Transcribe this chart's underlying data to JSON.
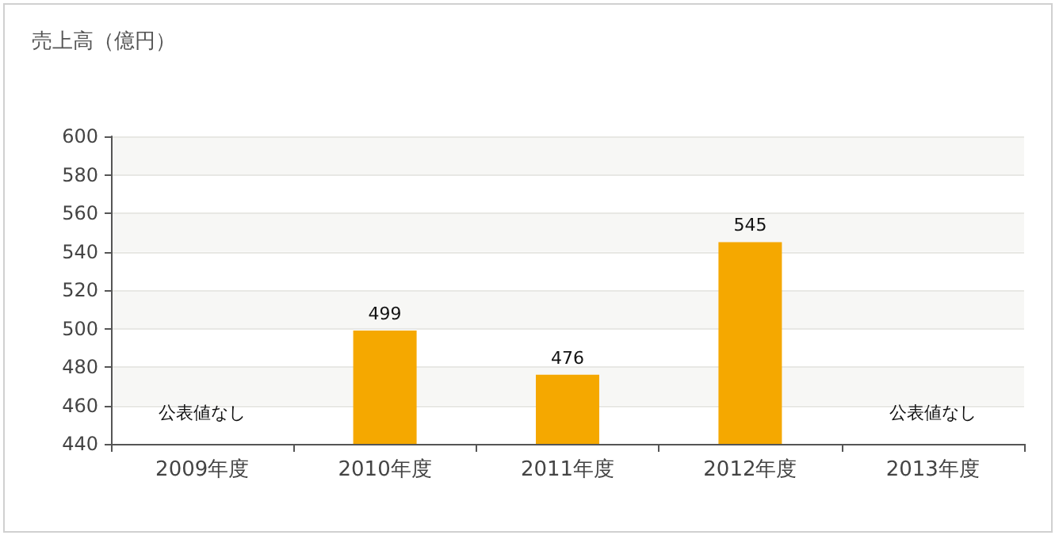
{
  "chart_data": {
    "type": "bar",
    "ylabel": "売上高（億円）",
    "categories": [
      "2009年度",
      "2010年度",
      "2011年度",
      "2012年度",
      "2013年度"
    ],
    "values": [
      null,
      499,
      476,
      545,
      null
    ],
    "value_labels": [
      "公表値なし",
      "499",
      "476",
      "545",
      "公表値なし"
    ],
    "color": "#f5a800",
    "ylim": [
      440,
      600
    ],
    "yticks": [
      440,
      460,
      480,
      500,
      520,
      540,
      560,
      580,
      600
    ],
    "grid": "y"
  }
}
